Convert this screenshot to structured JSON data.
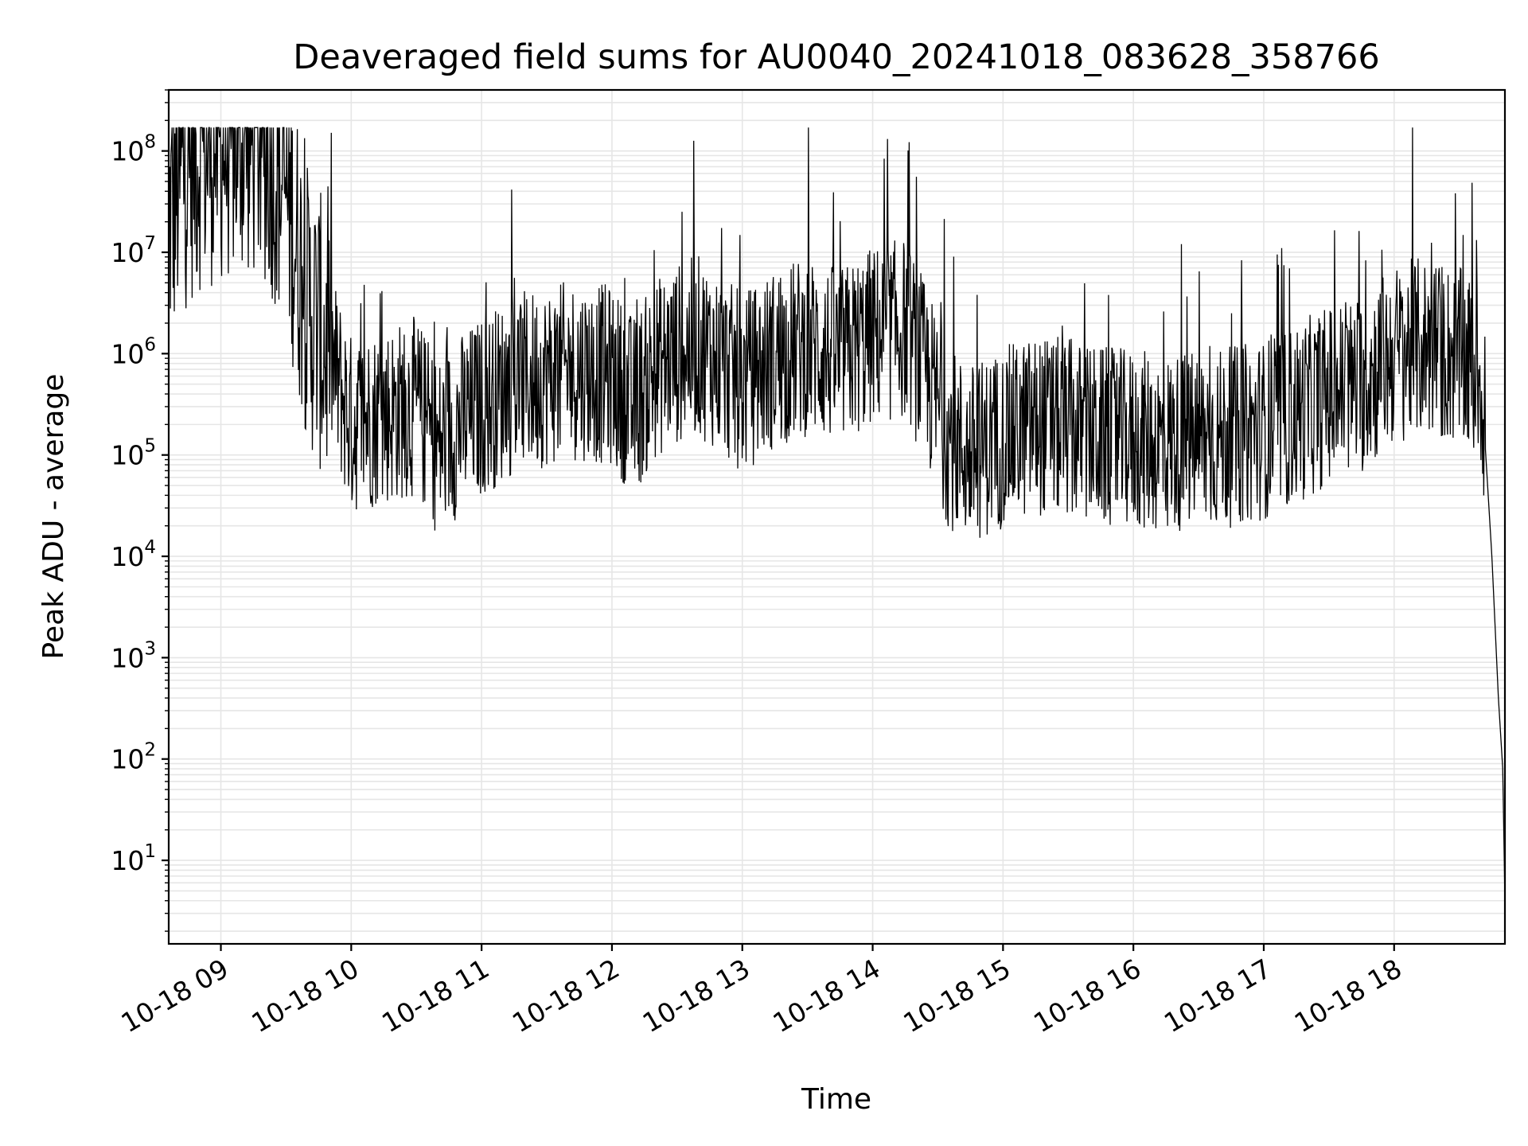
{
  "chart_data": {
    "type": "line",
    "title": "Deaveraged field sums for AU0040_20241018_083628_358766",
    "xlabel": "Time",
    "ylabel": "Peak ADU - average",
    "yscale": "log",
    "ylim": [
      1.5,
      400000000
    ],
    "xlim": [
      "2024-10-18 08:36",
      "2024-10-18 18:51"
    ],
    "grid": "on (major and minor)",
    "legend": "none",
    "line_color": "#000000",
    "x_ticks": [
      {
        "t": "2024-10-18 09:00",
        "label": "10-18 09"
      },
      {
        "t": "2024-10-18 10:00",
        "label": "10-18 10"
      },
      {
        "t": "2024-10-18 11:00",
        "label": "10-18 11"
      },
      {
        "t": "2024-10-18 12:00",
        "label": "10-18 12"
      },
      {
        "t": "2024-10-18 13:00",
        "label": "10-18 13"
      },
      {
        "t": "2024-10-18 14:00",
        "label": "10-18 14"
      },
      {
        "t": "2024-10-18 15:00",
        "label": "10-18 15"
      },
      {
        "t": "2024-10-18 16:00",
        "label": "10-18 16"
      },
      {
        "t": "2024-10-18 17:00",
        "label": "10-18 17"
      },
      {
        "t": "2024-10-18 18:00",
        "label": "10-18 18"
      }
    ],
    "y_ticks": [
      {
        "value": 10,
        "base": "10",
        "exp": "1"
      },
      {
        "value": 100,
        "base": "10",
        "exp": "2"
      },
      {
        "value": 1000,
        "base": "10",
        "exp": "3"
      },
      {
        "value": 10000,
        "base": "10",
        "exp": "4"
      },
      {
        "value": 100000,
        "base": "10",
        "exp": "5"
      },
      {
        "value": 1000000,
        "base": "10",
        "exp": "6"
      },
      {
        "value": 10000000,
        "base": "10",
        "exp": "7"
      },
      {
        "value": 100000000,
        "base": "10",
        "exp": "8"
      }
    ],
    "series": [
      {
        "description_points": "approximate envelope of the noisy signal",
        "x": [
          "2024-10-18 08:36",
          "2024-10-18 08:42",
          "2024-10-18 08:50",
          "2024-10-18 09:00",
          "2024-10-18 09:10",
          "2024-10-18 09:20",
          "2024-10-18 09:30",
          "2024-10-18 09:40",
          "2024-10-18 09:50",
          "2024-10-18 10:00",
          "2024-10-18 10:15",
          "2024-10-18 10:30",
          "2024-10-18 10:40",
          "2024-10-18 10:50",
          "2024-10-18 11:00",
          "2024-10-18 11:15",
          "2024-10-18 11:30",
          "2024-10-18 11:45",
          "2024-10-18 12:00",
          "2024-10-18 12:10",
          "2024-10-18 12:20",
          "2024-10-18 12:30",
          "2024-10-18 12:40",
          "2024-10-18 12:50",
          "2024-10-18 13:00",
          "2024-10-18 13:15",
          "2024-10-18 13:30",
          "2024-10-18 13:45",
          "2024-10-18 14:00",
          "2024-10-18 14:15",
          "2024-10-18 14:25",
          "2024-10-18 14:35",
          "2024-10-18 14:45",
          "2024-10-18 15:00",
          "2024-10-18 15:15",
          "2024-10-18 15:30",
          "2024-10-18 15:45",
          "2024-10-18 16:00",
          "2024-10-18 16:15",
          "2024-10-18 16:30",
          "2024-10-18 16:45",
          "2024-10-18 17:00",
          "2024-10-18 17:15",
          "2024-10-18 17:30",
          "2024-10-18 17:45",
          "2024-10-18 18:00",
          "2024-10-18 18:15",
          "2024-10-18 18:30",
          "2024-10-18 18:40",
          "2024-10-18 18:45",
          "2024-10-18 18:48",
          "2024-10-18 18:50",
          "2024-10-18 18:51"
        ],
        "y": [
          20000000,
          60000000,
          100000000,
          120000000,
          140000000,
          120000000,
          40000000,
          3000000,
          1000000,
          200000,
          250000,
          300000,
          120000,
          200000,
          300000,
          500000,
          600000,
          700000,
          600000,
          300000,
          700000,
          1000000,
          1200000,
          800000,
          500000,
          900000,
          1200000,
          900000,
          1500000,
          1800000,
          600000,
          150000,
          100000,
          150000,
          200000,
          180000,
          150000,
          140000,
          130000,
          140000,
          150000,
          180000,
          250000,
          400000,
          500000,
          1000000,
          1200000,
          900000,
          600000,
          10000,
          400,
          80,
          4
        ]
      }
    ]
  }
}
